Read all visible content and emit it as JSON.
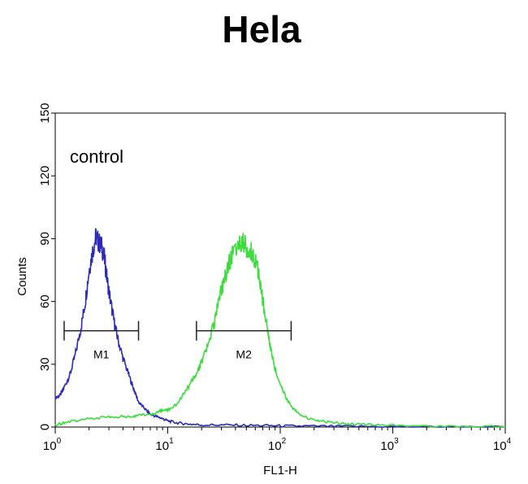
{
  "chart_data": {
    "type": "line",
    "title": "Hela",
    "xlabel": "FL1-H",
    "ylabel": "Counts",
    "x_scale": "log",
    "xlim": [
      1,
      10000
    ],
    "ylim": [
      0,
      150
    ],
    "x_ticks": [
      {
        "value": 1,
        "base": "10",
        "exp": "0"
      },
      {
        "value": 10,
        "base": "10",
        "exp": "1"
      },
      {
        "value": 100,
        "base": "10",
        "exp": "2"
      },
      {
        "value": 1000,
        "base": "10",
        "exp": "3"
      },
      {
        "value": 10000,
        "base": "10",
        "exp": "4"
      }
    ],
    "y_ticks": [
      "0",
      "30",
      "60",
      "90",
      "120",
      "150"
    ],
    "annotation": "control",
    "markers": [
      {
        "label": "M1",
        "x_start": 1.2,
        "x_end": 5.5,
        "y": 46
      },
      {
        "label": "M2",
        "x_start": 18,
        "x_end": 125,
        "y": 46
      }
    ],
    "series": [
      {
        "color": "#2b2bb8",
        "x": [
          1,
          1.1,
          1.2,
          1.35,
          1.5,
          1.7,
          1.85,
          2.0,
          2.15,
          2.3,
          2.45,
          2.6,
          2.75,
          2.9,
          3.1,
          3.35,
          3.6,
          4.0,
          4.5,
          5.0,
          5.5,
          6.2,
          7.0,
          8.0,
          9.0,
          10,
          12,
          15,
          20,
          30,
          50,
          80,
          120,
          200,
          400,
          1000,
          3000,
          10000
        ],
        "y": [
          14,
          15,
          19,
          25,
          34,
          48,
          60,
          75,
          84,
          91,
          88,
          86,
          80,
          70,
          60,
          50,
          42,
          33,
          25,
          18,
          12,
          9,
          6,
          5,
          4,
          3,
          2,
          1.5,
          1,
          1,
          0.8,
          0.7,
          0.5,
          0.4,
          0.3,
          0.2,
          0.1,
          0
        ]
      },
      {
        "color": "#3cdc3c",
        "x": [
          1,
          1.2,
          1.5,
          2,
          3,
          4,
          5,
          6,
          7,
          8,
          9,
          10,
          12,
          14,
          16,
          18,
          20,
          23,
          26,
          29,
          32,
          36,
          40,
          44,
          48,
          52,
          56,
          60,
          65,
          70,
          76,
          82,
          90,
          100,
          115,
          130,
          150,
          180,
          220,
          300,
          400,
          600,
          1000,
          2000,
          5000,
          10000
        ],
        "y": [
          1,
          2,
          3,
          4,
          5,
          5,
          5,
          6,
          6,
          7,
          8,
          8,
          11,
          16,
          21,
          26,
          31,
          40,
          50,
          62,
          72,
          80,
          85,
          89,
          87,
          85,
          83,
          80,
          72,
          60,
          48,
          38,
          28,
          20,
          13,
          9,
          6,
          4,
          3,
          2,
          1.5,
          1,
          0.7,
          0.5,
          0.3,
          0
        ]
      }
    ]
  }
}
